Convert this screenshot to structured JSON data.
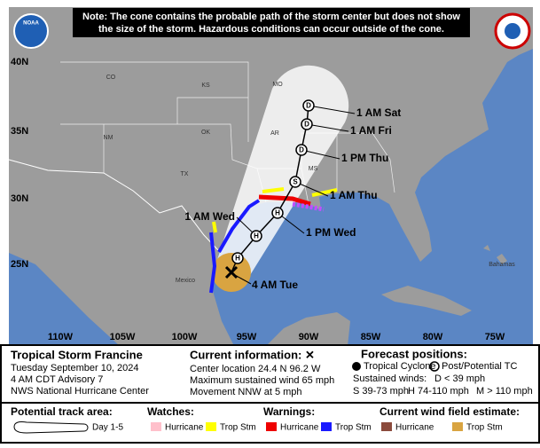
{
  "header": {
    "note": [
      "Note: The cone contains the probable path of the storm center but does not show",
      "the size of the storm. Hazardous conditions can occur outside of the cone."
    ],
    "logo_left": "NOAA"
  },
  "map": {
    "lat_labels": [
      "40N",
      "35N",
      "30N",
      "25N"
    ],
    "lon_labels": [
      "110W",
      "105W",
      "100W",
      "95W",
      "90W",
      "85W",
      "80W",
      "75W"
    ],
    "place_labels": [
      "CO",
      "KS",
      "MO",
      "NM",
      "OK",
      "AR",
      "TX",
      "MS",
      "Mexico",
      "Bahamas"
    ],
    "current_label": "4 AM Tue",
    "forecast_points": [
      {
        "symbol": "H"
      },
      {
        "symbol": "H",
        "label": "1 AM Wed"
      },
      {
        "symbol": "H",
        "label": "1 PM Wed"
      },
      {
        "symbol": "S",
        "label": "1 AM Thu"
      },
      {
        "symbol": "D",
        "label": "1 PM Thu"
      },
      {
        "symbol": "D",
        "label": "1 AM Fri"
      },
      {
        "symbol": "D",
        "label": "1 AM Sat"
      }
    ]
  },
  "info": {
    "storm_name": "Tropical Storm Francine",
    "date": "Tuesday September 10, 2024",
    "advisory": "4 AM CDT Advisory 7",
    "agency": "NWS National Hurricane Center",
    "current_title": "Current information: ✕",
    "current_lines": [
      "Center location 24.4 N 96.2 W",
      "Maximum sustained wind 65 mph",
      "Movement NNW at 5 mph"
    ],
    "forecast_title": "Forecast positions:",
    "tropical_cyclone": "Tropical Cyclone",
    "post_tc": "Post/Potential TC",
    "sustained_title": "Sustained winds:",
    "winds": [
      "D < 39 mph",
      "S 39-73 mph",
      "H 74-110 mph",
      "M > 110 mph"
    ]
  },
  "legend": {
    "track_title": "Potential track area:",
    "track_item": "Day 1-5",
    "watches_title": "Watches:",
    "watches": [
      "Hurricane",
      "Trop Stm"
    ],
    "warnings_title": "Warnings:",
    "warnings": [
      "Hurricane",
      "Trop Stm"
    ],
    "wind_title": "Current wind field estimate:",
    "wind": [
      "Hurricane",
      "Trop Stm"
    ]
  }
}
